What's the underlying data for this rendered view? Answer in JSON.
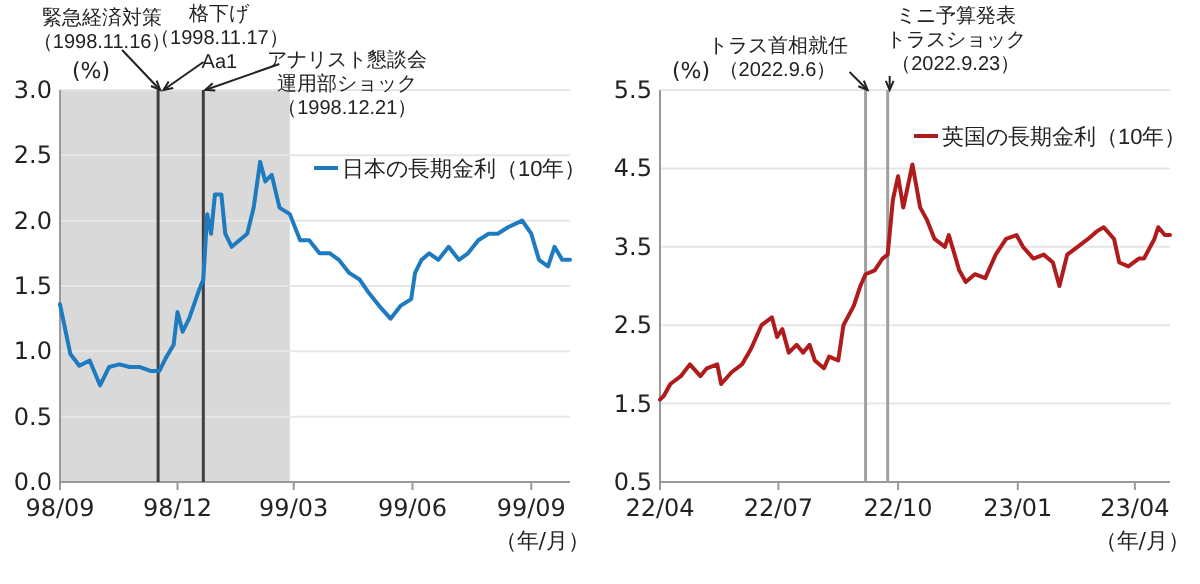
{
  "chart_data": [
    {
      "type": "line",
      "ylabel": "(%)",
      "xlabel": "（年/月）",
      "grid": "y",
      "legend": "top right",
      "xlim": [
        "1998-09-01",
        "1999-10-01"
      ],
      "xticks": [
        {
          "value": "1998-09-01",
          "label": "98/09"
        },
        {
          "value": "1998-12-01",
          "label": "98/12"
        },
        {
          "value": "1999-03-01",
          "label": "99/03"
        },
        {
          "value": "1999-06-01",
          "label": "99/06"
        },
        {
          "value": "1999-09-01",
          "label": "99/09"
        }
      ],
      "ylim": [
        0,
        3
      ],
      "yticks": [
        {
          "value": 0,
          "label": "0.0"
        },
        {
          "value": 0.5,
          "label": "0.5"
        },
        {
          "value": 1,
          "label": "1.0"
        },
        {
          "value": 1.5,
          "label": "1.5"
        },
        {
          "value": 2,
          "label": "2.0"
        },
        {
          "value": 2.5,
          "label": "2.5"
        },
        {
          "value": 3,
          "label": "3.0"
        }
      ],
      "bands": [
        {
          "axis": "x",
          "from": "1998-09-01",
          "to": "1999-02-26",
          "color": "#d9d9d9"
        }
      ],
      "ref_lines": [
        {
          "axis": "x",
          "value": "1998-11-16",
          "label": "緊急経済対策（1998.11.16）",
          "color": "#404040"
        },
        {
          "axis": "x",
          "value": "1998-12-21",
          "label": "アナリスト懇談会運用部ショック（1998.12.21）",
          "color": "#404040"
        }
      ],
      "annotations": [
        {
          "text": "格下げ（1998.11.17）Aa1",
          "x": "1998-11-17",
          "y": 3
        }
      ],
      "series": [
        {
          "name": "日本の長期金利（10年）",
          "color": "#1f7bbf",
          "x": [
            "1998-09-01",
            "1998-09-09",
            "1998-09-16",
            "1998-09-24",
            "1998-10-02",
            "1998-10-09",
            "1998-10-17",
            "1998-10-25",
            "1998-11-02",
            "1998-11-10",
            "1998-11-17",
            "1998-11-22",
            "1998-11-28",
            "1998-12-01",
            "1998-12-05",
            "1998-12-10",
            "1998-12-17",
            "1998-12-21",
            "1998-12-24",
            "1998-12-27",
            "1998-12-30",
            "1999-01-04",
            "1999-01-07",
            "1999-01-12",
            "1999-01-18",
            "1999-01-24",
            "1999-01-29",
            "1999-02-03",
            "1999-02-07",
            "1999-02-12",
            "1999-02-18",
            "1999-02-26",
            "1999-03-06",
            "1999-03-13",
            "1999-03-21",
            "1999-03-29",
            "1999-04-05",
            "1999-04-13",
            "1999-04-21",
            "1999-04-28",
            "1999-05-06",
            "1999-05-15",
            "1999-05-23",
            "1999-05-31",
            "1999-06-03",
            "1999-06-08",
            "1999-06-14",
            "1999-06-21",
            "1999-06-29",
            "1999-07-07",
            "1999-07-14",
            "1999-07-22",
            "1999-07-30",
            "1999-08-06",
            "1999-08-14",
            "1999-08-25",
            "1999-09-01",
            "1999-09-07",
            "1999-09-14",
            "1999-09-19",
            "1999-09-25",
            "1999-10-01"
          ],
          "values": [
            1.36,
            0.98,
            0.89,
            0.93,
            0.74,
            0.88,
            0.9,
            0.88,
            0.88,
            0.85,
            0.85,
            0.95,
            1.05,
            1.3,
            1.15,
            1.25,
            1.45,
            1.55,
            2.05,
            1.9,
            2.2,
            2.2,
            1.9,
            1.8,
            1.85,
            1.9,
            2.1,
            2.45,
            2.3,
            2.35,
            2.1,
            2.05,
            1.85,
            1.85,
            1.75,
            1.75,
            1.7,
            1.6,
            1.55,
            1.45,
            1.35,
            1.25,
            1.35,
            1.4,
            1.6,
            1.7,
            1.75,
            1.7,
            1.8,
            1.7,
            1.75,
            1.85,
            1.9,
            1.9,
            1.95,
            2.0,
            1.9,
            1.7,
            1.65,
            1.8,
            1.7,
            1.7
          ]
        }
      ]
    },
    {
      "type": "line",
      "ylabel": "(%)",
      "xlabel": "（年/月）",
      "grid": "y",
      "legend": "top right",
      "xlim": [
        "2022-04-01",
        "2023-04-28"
      ],
      "xticks": [
        {
          "value": "2022-04-01",
          "label": "22/04"
        },
        {
          "value": "2022-07-01",
          "label": "22/07"
        },
        {
          "value": "2022-10-01",
          "label": "22/10"
        },
        {
          "value": "2023-01-01",
          "label": "23/01"
        },
        {
          "value": "2023-04-01",
          "label": "23/04"
        }
      ],
      "ylim": [
        0.5,
        5.5
      ],
      "yticks": [
        0.5,
        1.5,
        2.5,
        3.5,
        4.5,
        5.5
      ],
      "ref_lines": [
        {
          "axis": "x",
          "value": "2022-09-06",
          "label": "トラス首相就任（2022.9.6）",
          "color": "#a0a0a0"
        },
        {
          "axis": "x",
          "value": "2022-09-23",
          "label": "ミニ予算発表トラスショック（2022.9.23）",
          "color": "#a0a0a0"
        }
      ],
      "series": [
        {
          "name": "英国の長期金利（10年）",
          "color": "#b01c1c",
          "x": [
            "2022-04-01",
            "2022-04-04",
            "2022-04-09",
            "2022-04-17",
            "2022-04-24",
            "2022-05-02",
            "2022-05-07",
            "2022-05-15",
            "2022-05-18",
            "2022-05-26",
            "2022-06-03",
            "2022-06-10",
            "2022-06-18",
            "2022-06-26",
            "2022-06-30",
            "2022-07-04",
            "2022-07-09",
            "2022-07-15",
            "2022-07-20",
            "2022-07-25",
            "2022-07-29",
            "2022-08-05",
            "2022-08-09",
            "2022-08-16",
            "2022-08-20",
            "2022-08-28",
            "2022-09-02",
            "2022-09-06",
            "2022-09-13",
            "2022-09-19",
            "2022-09-23",
            "2022-09-27",
            "2022-10-01",
            "2022-10-05",
            "2022-10-12",
            "2022-10-18",
            "2022-10-23",
            "2022-10-29",
            "2022-11-06",
            "2022-11-09",
            "2022-11-17",
            "2022-11-22",
            "2022-11-29",
            "2022-12-07",
            "2022-12-15",
            "2022-12-23",
            "2022-12-31",
            "2023-01-05",
            "2023-01-13",
            "2023-01-21",
            "2023-01-28",
            "2023-02-02",
            "2023-02-08",
            "2023-02-16",
            "2023-02-24",
            "2023-03-03",
            "2023-03-08",
            "2023-03-16",
            "2023-03-20",
            "2023-03-27",
            "2023-04-04",
            "2023-04-08",
            "2023-04-16",
            "2023-04-19",
            "2023-04-24",
            "2023-04-28"
          ],
          "values": [
            1.55,
            1.6,
            1.75,
            1.85,
            2.0,
            1.85,
            1.95,
            2.0,
            1.75,
            1.9,
            2.0,
            2.2,
            2.5,
            2.6,
            2.35,
            2.45,
            2.15,
            2.25,
            2.15,
            2.25,
            2.05,
            1.95,
            2.1,
            2.05,
            2.5,
            2.75,
            3.0,
            3.15,
            3.2,
            3.35,
            3.4,
            4.1,
            4.4,
            4.0,
            4.55,
            4.0,
            3.85,
            3.6,
            3.5,
            3.65,
            3.2,
            3.05,
            3.15,
            3.1,
            3.4,
            3.6,
            3.65,
            3.5,
            3.35,
            3.4,
            3.3,
            3.0,
            3.4,
            3.5,
            3.6,
            3.7,
            3.75,
            3.6,
            3.3,
            3.25,
            3.35,
            3.35,
            3.6,
            3.75,
            3.65,
            3.65
          ]
        }
      ]
    }
  ]
}
